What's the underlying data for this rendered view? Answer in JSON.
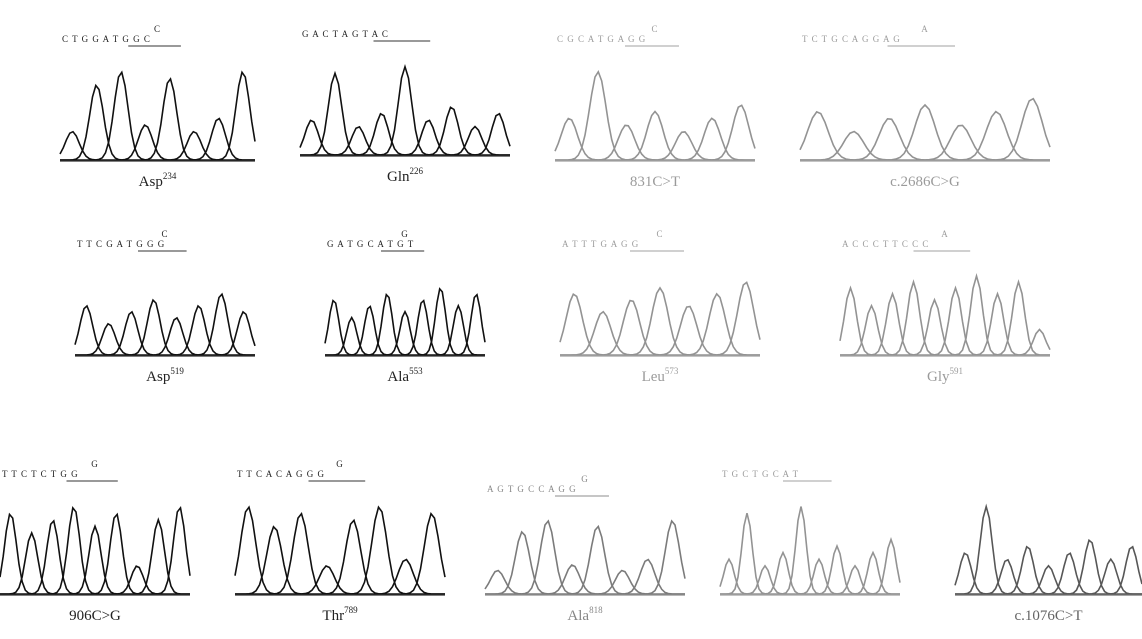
{
  "panels": [
    {
      "sequence": "C T G G A T G G C",
      "mutation": "C",
      "residue": "Asp",
      "position": "234"
    },
    {
      "sequence": "G A C T A G T A C",
      "residue": "Gln",
      "position": "226"
    },
    {
      "sequence": "C G C A T G A G G",
      "mutation": "C",
      "residue": "831C>T"
    },
    {
      "sequence": "T C T G C A G G A G",
      "mutation": "A",
      "residue": "c.2686C>G"
    },
    {
      "sequence": "T T C G A T G G G",
      "mutation": "C",
      "residue": "Asp",
      "position": "519"
    },
    {
      "sequence": "G A T G C A T G T",
      "mutation": "G",
      "residue": "Ala",
      "position": "553"
    },
    {
      "sequence": "A T T T G A G G",
      "mutation": "C",
      "residue": "Leu",
      "position": "573"
    },
    {
      "sequence": "A C C C T T C C C",
      "mutation": "A",
      "residue": "Gly",
      "position": "591"
    },
    {
      "sequence": "T T C T C T G G",
      "mutation": "G",
      "residue": "906C>G"
    },
    {
      "sequence": "T T C A C A G G G",
      "mutation": "G",
      "residue": "Thr",
      "position": "789"
    },
    {
      "sequence": "A G T G C C A G G",
      "mutation": "G",
      "residue": "Ala",
      "position": "818"
    },
    {
      "sequence": "T G C T G C A T"
    },
    {
      "residue": "c.1076C>T"
    }
  ]
}
